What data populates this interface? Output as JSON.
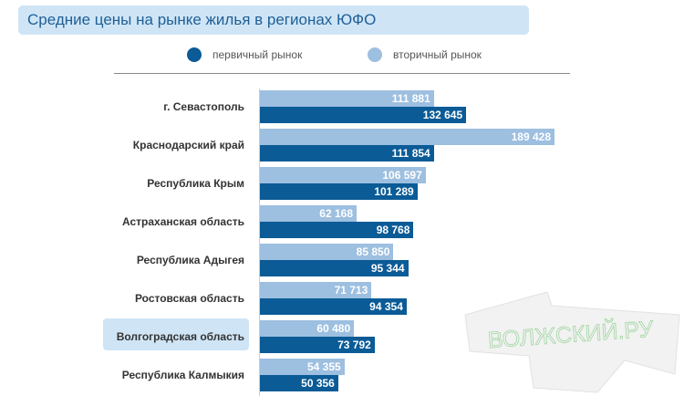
{
  "chart_data": {
    "type": "bar",
    "title": "Средние цены на рынке жилья в регионах ЮФО",
    "legend": [
      "первичный рынок",
      "вторичный рынок"
    ],
    "legend_position": "top",
    "categories": [
      "г. Севастополь",
      "Краснодарский край",
      "Республика Крым",
      "Астраханская область",
      "Республика Адыгея",
      "Ростовская область",
      "Волгоградская область",
      "Республика Калмыкия"
    ],
    "series": [
      {
        "name": "вторичный рынок",
        "values": [
          111881,
          189428,
          106597,
          62168,
          85850,
          71713,
          60480,
          54355
        ],
        "labels": [
          "111 881",
          "189 428",
          "106 597",
          "62 168",
          "85 850",
          "71 713",
          "60 480",
          "54 355"
        ],
        "color": "#9dbfe0"
      },
      {
        "name": "первичный рынок",
        "values": [
          132645,
          111854,
          101289,
          98768,
          95344,
          94354,
          73792,
          50356
        ],
        "labels": [
          "132 645",
          "111 854",
          "101 289",
          "98 768",
          "95 344",
          "94 354",
          "73 792",
          "50 356"
        ],
        "color": "#0b5b97"
      }
    ],
    "highlight": "Волгоградская область",
    "xlim": [
      0,
      190000
    ]
  },
  "watermark": "ВОЛЖСКИЙ.РУ"
}
